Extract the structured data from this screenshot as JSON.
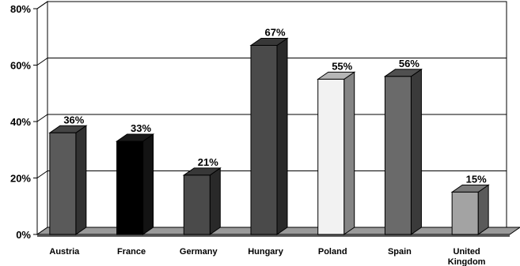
{
  "chart_data": {
    "type": "bar",
    "style": "3d-column",
    "categories": [
      "Austria",
      "France",
      "Germany",
      "Hungary",
      "Poland",
      "Spain",
      "United Kingdom"
    ],
    "category_lines": [
      [
        "Austria"
      ],
      [
        "France"
      ],
      [
        "Germany"
      ],
      [
        "Hungary"
      ],
      [
        "Poland"
      ],
      [
        "Spain"
      ],
      [
        "United",
        "Kingdom"
      ]
    ],
    "values": [
      36,
      33,
      21,
      67,
      55,
      56,
      15
    ],
    "data_labels": [
      "36%",
      "33%",
      "21%",
      "67%",
      "55%",
      "56%",
      "15%"
    ],
    "bar_colors": [
      "#5a5a5a",
      "#000000",
      "#4a4a4a",
      "#4a4a4a",
      "#f2f2f2",
      "#6a6a6a",
      "#a3a3a3"
    ],
    "title": "",
    "xlabel": "",
    "ylabel": "",
    "ylim": [
      0,
      80
    ],
    "yticks": [
      0,
      20,
      40,
      60,
      80
    ],
    "ytick_labels": [
      "0%",
      "20%",
      "40%",
      "60%",
      "80%"
    ],
    "grid": true,
    "legend": "none"
  }
}
